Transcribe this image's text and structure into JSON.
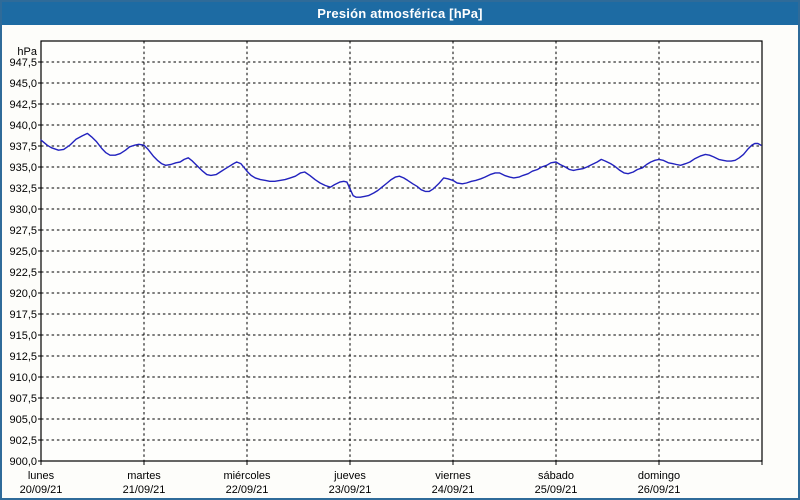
{
  "window": {
    "title": "Presión atmosférica [hPa]"
  },
  "colors": {
    "title_bar": "#1d6ba3",
    "title_text": "#ffffff",
    "window_border": "#2f6b99",
    "background": "#fdfdfa",
    "plot_background": "#fefefc",
    "grid": "#000000",
    "frame": "#000000",
    "line": "#2222be",
    "label_text": "#000000"
  },
  "chart_data": {
    "type": "line",
    "title": "Presión atmosférica [hPa]",
    "ylabel": "hPa",
    "ylim": [
      900,
      950
    ],
    "y_tick_step": 2.5,
    "y_tick_labels_top_to_bottom": [
      "947,5",
      "945,0",
      "942,5",
      "940,0",
      "937,5",
      "935,0",
      "932,5",
      "930,0",
      "927,5",
      "925,0",
      "922,5",
      "920,0",
      "917,5",
      "915,0",
      "912,5",
      "910,0",
      "907,5",
      "905,0",
      "902,5",
      "900,0"
    ],
    "x_span_days": 7,
    "x_categories": [
      {
        "day": "lunes",
        "date": "20/09/21"
      },
      {
        "day": "martes",
        "date": "21/09/21"
      },
      {
        "day": "miércoles",
        "date": "22/09/21"
      },
      {
        "day": "jueves",
        "date": "23/09/21"
      },
      {
        "day": "viernes",
        "date": "24/09/21"
      },
      {
        "day": "sábado",
        "date": "25/09/21"
      },
      {
        "day": "domingo",
        "date": "26/09/21"
      }
    ],
    "grid": "dashed",
    "legend": "none",
    "series": [
      {
        "name": "Presión atmosférica",
        "unit": "hPa",
        "points": [
          [
            0.0,
            938.2
          ],
          [
            0.06,
            937.6
          ],
          [
            0.1,
            937.3
          ],
          [
            0.17,
            937.0
          ],
          [
            0.22,
            937.1
          ],
          [
            0.28,
            937.6
          ],
          [
            0.34,
            938.3
          ],
          [
            0.4,
            938.7
          ],
          [
            0.45,
            939.0
          ],
          [
            0.49,
            938.6
          ],
          [
            0.54,
            938.0
          ],
          [
            0.59,
            937.2
          ],
          [
            0.63,
            936.7
          ],
          [
            0.67,
            936.4
          ],
          [
            0.72,
            936.4
          ],
          [
            0.77,
            936.6
          ],
          [
            0.82,
            937.0
          ],
          [
            0.86,
            937.4
          ],
          [
            0.91,
            937.6
          ],
          [
            0.95,
            937.7
          ],
          [
            1.0,
            937.6
          ],
          [
            1.04,
            937.1
          ],
          [
            1.09,
            936.3
          ],
          [
            1.13,
            935.8
          ],
          [
            1.17,
            935.4
          ],
          [
            1.21,
            935.2
          ],
          [
            1.26,
            935.3
          ],
          [
            1.31,
            935.5
          ],
          [
            1.35,
            935.6
          ],
          [
            1.39,
            935.9
          ],
          [
            1.43,
            936.1
          ],
          [
            1.47,
            935.7
          ],
          [
            1.52,
            935.1
          ],
          [
            1.57,
            934.5
          ],
          [
            1.61,
            934.1
          ],
          [
            1.65,
            934.0
          ],
          [
            1.7,
            934.1
          ],
          [
            1.74,
            934.4
          ],
          [
            1.79,
            934.8
          ],
          [
            1.83,
            935.1
          ],
          [
            1.87,
            935.4
          ],
          [
            1.9,
            935.6
          ],
          [
            1.94,
            935.4
          ],
          [
            2.0,
            934.5
          ],
          [
            2.04,
            934.0
          ],
          [
            2.08,
            933.7
          ],
          [
            2.13,
            933.5
          ],
          [
            2.18,
            933.4
          ],
          [
            2.22,
            933.3
          ],
          [
            2.27,
            933.3
          ],
          [
            2.32,
            933.4
          ],
          [
            2.37,
            933.5
          ],
          [
            2.42,
            933.7
          ],
          [
            2.47,
            933.9
          ],
          [
            2.52,
            934.3
          ],
          [
            2.56,
            934.4
          ],
          [
            2.61,
            934.0
          ],
          [
            2.66,
            933.5
          ],
          [
            2.71,
            933.1
          ],
          [
            2.76,
            932.8
          ],
          [
            2.81,
            932.6
          ],
          [
            2.85,
            932.9
          ],
          [
            2.9,
            933.2
          ],
          [
            2.94,
            933.3
          ],
          [
            2.97,
            933.2
          ],
          [
            3.0,
            932.4
          ],
          [
            3.03,
            931.6
          ],
          [
            3.06,
            931.4
          ],
          [
            3.1,
            931.4
          ],
          [
            3.14,
            931.5
          ],
          [
            3.18,
            931.6
          ],
          [
            3.23,
            931.9
          ],
          [
            3.27,
            932.2
          ],
          [
            3.31,
            932.6
          ],
          [
            3.36,
            933.1
          ],
          [
            3.4,
            933.5
          ],
          [
            3.44,
            933.8
          ],
          [
            3.48,
            933.9
          ],
          [
            3.52,
            933.7
          ],
          [
            3.56,
            933.4
          ],
          [
            3.61,
            933.0
          ],
          [
            3.65,
            932.7
          ],
          [
            3.69,
            932.3
          ],
          [
            3.73,
            932.1
          ],
          [
            3.77,
            932.1
          ],
          [
            3.81,
            932.4
          ],
          [
            3.86,
            933.0
          ],
          [
            3.91,
            933.7
          ],
          [
            3.95,
            933.6
          ],
          [
            4.0,
            933.4
          ],
          [
            4.04,
            933.1
          ],
          [
            4.09,
            933.0
          ],
          [
            4.13,
            933.1
          ],
          [
            4.18,
            933.3
          ],
          [
            4.22,
            933.4
          ],
          [
            4.27,
            933.6
          ],
          [
            4.31,
            933.8
          ],
          [
            4.36,
            934.1
          ],
          [
            4.41,
            934.3
          ],
          [
            4.45,
            934.3
          ],
          [
            4.5,
            934.0
          ],
          [
            4.55,
            933.8
          ],
          [
            4.59,
            933.7
          ],
          [
            4.64,
            933.8
          ],
          [
            4.68,
            934.0
          ],
          [
            4.73,
            934.2
          ],
          [
            4.77,
            934.5
          ],
          [
            4.82,
            934.7
          ],
          [
            4.86,
            935.0
          ],
          [
            4.91,
            935.2
          ],
          [
            4.95,
            935.5
          ],
          [
            5.0,
            935.6
          ],
          [
            5.04,
            935.3
          ],
          [
            5.09,
            935.0
          ],
          [
            5.13,
            934.7
          ],
          [
            5.17,
            934.6
          ],
          [
            5.21,
            934.7
          ],
          [
            5.26,
            934.8
          ],
          [
            5.3,
            935.0
          ],
          [
            5.35,
            935.3
          ],
          [
            5.4,
            935.6
          ],
          [
            5.44,
            935.9
          ],
          [
            5.48,
            935.7
          ],
          [
            5.53,
            935.4
          ],
          [
            5.57,
            935.1
          ],
          [
            5.62,
            934.6
          ],
          [
            5.66,
            934.3
          ],
          [
            5.7,
            934.2
          ],
          [
            5.75,
            934.4
          ],
          [
            5.79,
            934.7
          ],
          [
            5.84,
            934.9
          ],
          [
            5.88,
            935.3
          ],
          [
            5.92,
            935.6
          ],
          [
            5.96,
            935.8
          ],
          [
            6.0,
            935.9
          ],
          [
            6.04,
            935.8
          ],
          [
            6.09,
            935.5
          ],
          [
            6.13,
            935.4
          ],
          [
            6.17,
            935.3
          ],
          [
            6.21,
            935.2
          ],
          [
            6.26,
            935.4
          ],
          [
            6.3,
            935.6
          ],
          [
            6.35,
            936.0
          ],
          [
            6.4,
            936.3
          ],
          [
            6.45,
            936.5
          ],
          [
            6.49,
            936.4
          ],
          [
            6.53,
            936.2
          ],
          [
            6.58,
            935.9
          ],
          [
            6.62,
            935.8
          ],
          [
            6.66,
            935.7
          ],
          [
            6.7,
            935.7
          ],
          [
            6.74,
            935.8
          ],
          [
            6.78,
            936.1
          ],
          [
            6.82,
            936.5
          ],
          [
            6.86,
            937.1
          ],
          [
            6.9,
            937.6
          ],
          [
            6.93,
            937.8
          ],
          [
            6.96,
            937.8
          ],
          [
            6.99,
            937.6
          ]
        ]
      }
    ]
  }
}
